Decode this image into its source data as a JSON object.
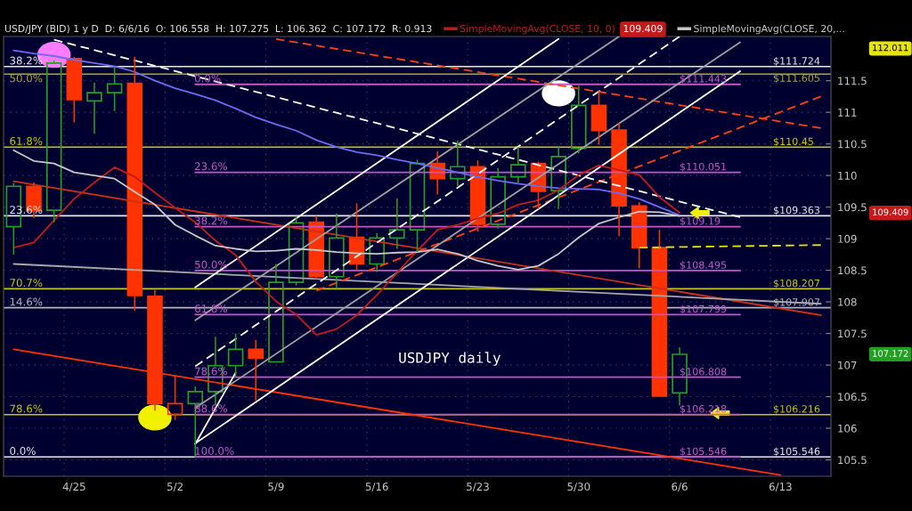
{
  "chart_data": {
    "type": "candlestick",
    "title": "USD/JPY (BID) 1 y D  D: 6/6/16  O: 106.558  H: 107.275  L: 106.362  C: 107.172  R: 0.913",
    "categories": [
      null,
      null,
      null,
      "4/25",
      null,
      null,
      null,
      null,
      "5/2",
      null,
      null,
      null,
      null,
      "5/9",
      null,
      null,
      null,
      null,
      "5/16",
      null,
      null,
      null,
      null,
      "5/23",
      null,
      null,
      null,
      null,
      "5/30",
      null,
      null,
      null,
      null,
      "6/6",
      null,
      null,
      null,
      null,
      "6/13",
      null,
      null
    ],
    "ohlc": [
      [
        109.19,
        109.88,
        108.75,
        109.83
      ],
      [
        109.83,
        109.89,
        109.33,
        109.44
      ],
      [
        109.45,
        111.82,
        109.26,
        111.78
      ],
      [
        111.85,
        111.88,
        110.84,
        111.2
      ],
      [
        111.18,
        111.47,
        110.66,
        111.31
      ],
      [
        111.31,
        111.72,
        111.02,
        111.45
      ],
      [
        111.46,
        111.88,
        107.86,
        108.1
      ],
      [
        108.09,
        108.19,
        106.28,
        106.39
      ],
      [
        106.22,
        106.82,
        106.13,
        106.39
      ],
      [
        106.39,
        106.66,
        105.55,
        106.58
      ],
      [
        106.58,
        107.45,
        106.37,
        106.99
      ],
      [
        106.99,
        107.5,
        106.81,
        107.25
      ],
      [
        107.25,
        107.4,
        106.44,
        107.11
      ],
      [
        107.05,
        108.6,
        107.05,
        108.31
      ],
      [
        108.31,
        109.36,
        108.26,
        109.25
      ],
      [
        109.26,
        109.36,
        108.36,
        108.4
      ],
      [
        108.4,
        109.4,
        108.21,
        109.01
      ],
      [
        109.02,
        109.56,
        108.5,
        108.6
      ],
      [
        108.6,
        109.09,
        108.47,
        109.01
      ],
      [
        109.01,
        109.64,
        108.84,
        109.14
      ],
      [
        109.14,
        110.25,
        108.79,
        110.19
      ],
      [
        110.19,
        110.38,
        109.7,
        109.95
      ],
      [
        109.95,
        110.56,
        109.83,
        110.14
      ],
      [
        110.14,
        110.24,
        109.11,
        109.23
      ],
      [
        109.23,
        110.12,
        109.16,
        109.98
      ],
      [
        109.98,
        110.45,
        109.88,
        110.17
      ],
      [
        110.19,
        110.22,
        109.47,
        109.75
      ],
      [
        109.76,
        110.45,
        109.47,
        110.3
      ],
      [
        110.43,
        111.42,
        110.35,
        111.11
      ],
      [
        111.11,
        111.35,
        110.49,
        110.71
      ],
      [
        110.72,
        110.83,
        109.04,
        109.52
      ],
      [
        109.52,
        109.58,
        108.53,
        108.86
      ],
      [
        108.86,
        109.14,
        106.51,
        106.51
      ],
      [
        106.56,
        107.28,
        106.36,
        107.17
      ],
      null,
      null,
      null,
      null,
      null,
      null,
      null
    ],
    "colors": [
      "#22a022",
      "#ff3300",
      "#22a022",
      "#ff3300",
      "#22a022",
      "#22a022",
      "#ff3300",
      "#ff3300",
      "#ff3300",
      "#22a022",
      "#22a022",
      "#22a022",
      "#ff3300",
      "#22a022",
      "#22a022",
      "#ff3300",
      "#22a022",
      "#ff3300",
      "#22a022",
      "#22a022",
      "#22a022",
      "#ff3300",
      "#22a022",
      "#ff3300",
      "#22a022",
      "#22a022",
      "#ff3300",
      "#22a022",
      "#22a022",
      "#ff3300",
      "#ff3300",
      "#ff3300",
      "#ff3300",
      "#22a022",
      null,
      null,
      null,
      null,
      null,
      null,
      null
    ],
    "ylim": [
      105.24,
      112.2
    ],
    "yticks": [
      105.5,
      106,
      106.5,
      107,
      107.5,
      108,
      108.5,
      109,
      109.5,
      110,
      110.5,
      111,
      111.5
    ],
    "grid": true,
    "legend": "top",
    "ref_lines": [
      {
        "axis": "y",
        "value": 111.724,
        "label": "$111.724",
        "color": "#e8e8e8"
      },
      {
        "axis": "y",
        "value": 111.605,
        "label": "$111.605",
        "color": "#a8a820"
      },
      {
        "axis": "y",
        "value": 110.45,
        "label": "$110.45",
        "color": "#c8c800"
      },
      {
        "axis": "y",
        "value": 109.363,
        "label": "$109.363",
        "color": "#e8e8e8"
      },
      {
        "axis": "y",
        "value": 108.207,
        "label": "$108.207",
        "color": "#c8c800"
      },
      {
        "axis": "y",
        "value": 107.907,
        "label": "$107.907",
        "color": "#b4b4b4"
      },
      {
        "axis": "y",
        "value": 106.216,
        "label": "$106.216",
        "color": "#c8c800"
      },
      {
        "axis": "y",
        "value": 105.546,
        "label": "$105.546",
        "color": "#e8e8e8"
      }
    ],
    "series": [
      {
        "type": "line",
        "name": "0.0%",
        "color": "#c855c8",
        "values": [
          null,
          null,
          null,
          null,
          null,
          null,
          null,
          null,
          null,
          111.443,
          null,
          null,
          null,
          null,
          null,
          null,
          null,
          null,
          null,
          null,
          null,
          null,
          null,
          null,
          null,
          null,
          null,
          null,
          null,
          null,
          null,
          null,
          null,
          null,
          null,
          null,
          111.443,
          null,
          null,
          null,
          null
        ]
      },
      {
        "type": "line",
        "name": "23.6%",
        "color": "#c855c8",
        "values": [
          null,
          null,
          null,
          null,
          null,
          null,
          null,
          null,
          null,
          110.051,
          null,
          null,
          null,
          null,
          null,
          null,
          null,
          null,
          null,
          null,
          null,
          null,
          null,
          null,
          null,
          null,
          null,
          null,
          null,
          null,
          null,
          null,
          null,
          null,
          null,
          null,
          110.051,
          null,
          null,
          null,
          null
        ]
      },
      {
        "type": "line",
        "name": "38.2%",
        "color": "#c855c8",
        "values": [
          null,
          null,
          null,
          null,
          null,
          null,
          null,
          null,
          null,
          109.19,
          null,
          null,
          null,
          null,
          null,
          null,
          null,
          null,
          null,
          null,
          null,
          null,
          null,
          null,
          null,
          null,
          null,
          null,
          null,
          null,
          null,
          null,
          null,
          null,
          null,
          null,
          109.19,
          null,
          null,
          null,
          null
        ]
      },
      {
        "type": "line",
        "name": "50.0%",
        "color": "#c855c8",
        "values": [
          null,
          null,
          null,
          null,
          null,
          null,
          null,
          null,
          null,
          108.495,
          null,
          null,
          null,
          null,
          null,
          null,
          null,
          null,
          null,
          null,
          null,
          null,
          null,
          null,
          null,
          null,
          null,
          null,
          null,
          null,
          null,
          null,
          null,
          null,
          null,
          null,
          108.495,
          null,
          null,
          null,
          null
        ]
      },
      {
        "type": "line",
        "name": "61.8%",
        "color": "#c855c8",
        "values": [
          null,
          null,
          null,
          null,
          null,
          null,
          null,
          null,
          null,
          107.799,
          null,
          null,
          null,
          null,
          null,
          null,
          null,
          null,
          null,
          null,
          null,
          null,
          null,
          null,
          null,
          null,
          null,
          null,
          null,
          null,
          null,
          null,
          null,
          null,
          null,
          null,
          107.799,
          null,
          null,
          null,
          null
        ]
      },
      {
        "type": "line",
        "name": "78.6%",
        "color": "#c855c8",
        "values": [
          null,
          null,
          null,
          null,
          null,
          null,
          null,
          null,
          null,
          106.808,
          null,
          null,
          null,
          null,
          null,
          null,
          null,
          null,
          null,
          null,
          null,
          null,
          null,
          null,
          null,
          null,
          null,
          null,
          null,
          null,
          null,
          null,
          null,
          null,
          null,
          null,
          106.808,
          null,
          null,
          null,
          null
        ]
      },
      {
        "type": "line",
        "name": "88.6%",
        "color": "#c855c8",
        "values": [
          null,
          null,
          null,
          null,
          null,
          null,
          null,
          null,
          null,
          106.218,
          null,
          null,
          null,
          null,
          null,
          null,
          null,
          null,
          null,
          null,
          null,
          null,
          null,
          null,
          null,
          null,
          null,
          null,
          null,
          null,
          null,
          null,
          null,
          null,
          null,
          null,
          106.218,
          null,
          null,
          null,
          null
        ]
      },
      {
        "type": "line",
        "name": "100.0%",
        "color": "#c855c8",
        "values": [
          null,
          null,
          null,
          null,
          null,
          null,
          null,
          null,
          null,
          105.546,
          null,
          null,
          null,
          null,
          null,
          null,
          null,
          null,
          null,
          null,
          null,
          null,
          null,
          null,
          null,
          null,
          null,
          null,
          null,
          null,
          null,
          null,
          null,
          null,
          null,
          null,
          105.546,
          null,
          null,
          null,
          null
        ]
      },
      {
        "type": "line",
        "color": "#c83214",
        "values": [
          109.91,
          null,
          null,
          null,
          null,
          null,
          null,
          null,
          null,
          null,
          null,
          null,
          null,
          null,
          null,
          null,
          null,
          null,
          null,
          null,
          null,
          null,
          null,
          null,
          null,
          null,
          null,
          null,
          null,
          null,
          null,
          null,
          null,
          null,
          null,
          null,
          null,
          null,
          null,
          null,
          107.79
        ]
      },
      {
        "type": "line",
        "color": "#a8a8a8",
        "values": [
          108.6,
          null,
          null,
          null,
          null,
          null,
          null,
          null,
          null,
          null,
          null,
          null,
          null,
          null,
          null,
          null,
          null,
          null,
          null,
          null,
          null,
          null,
          null,
          null,
          null,
          null,
          null,
          null,
          null,
          null,
          null,
          null,
          null,
          null,
          null,
          null,
          null,
          null,
          null,
          null,
          107.97
        ]
      },
      {
        "type": "line",
        "color": "#ff3300",
        "values": [
          107.25,
          null,
          null,
          null,
          null,
          null,
          null,
          null,
          null,
          null,
          null,
          null,
          null,
          null,
          null,
          null,
          null,
          null,
          null,
          null,
          null,
          null,
          null,
          null,
          null,
          null,
          null,
          null,
          null,
          null,
          null,
          null,
          null,
          null,
          null,
          null,
          null,
          null,
          105.26,
          null,
          null
        ]
      },
      {
        "type": "line",
        "color": "#ff4010",
        "line_style": "dashed",
        "values": [
          null,
          null,
          null,
          null,
          null,
          null,
          null,
          null,
          null,
          null,
          null,
          null,
          null,
          112.16,
          null,
          null,
          null,
          null,
          null,
          null,
          null,
          null,
          null,
          null,
          null,
          null,
          null,
          null,
          null,
          null,
          null,
          null,
          null,
          null,
          null,
          null,
          null,
          null,
          null,
          null,
          110.75
        ]
      },
      {
        "type": "line",
        "color": "#ff4010",
        "line_style": "dashed",
        "values": [
          null,
          null,
          null,
          null,
          null,
          null,
          null,
          null,
          null,
          null,
          null,
          null,
          null,
          null,
          null,
          108.18,
          null,
          null,
          null,
          null,
          null,
          null,
          null,
          null,
          null,
          null,
          null,
          null,
          null,
          null,
          null,
          null,
          null,
          null,
          null,
          null,
          null,
          null,
          null,
          null,
          111.25
        ]
      },
      {
        "type": "line",
        "color": "#ffffff",
        "line_style": "dashed",
        "values": [
          null,
          null,
          112.15,
          null,
          null,
          null,
          null,
          null,
          null,
          null,
          null,
          null,
          null,
          null,
          null,
          null,
          null,
          null,
          null,
          null,
          null,
          null,
          null,
          null,
          null,
          null,
          null,
          null,
          null,
          null,
          null,
          null,
          null,
          null,
          null,
          null,
          109.34,
          null,
          null,
          null,
          null
        ]
      },
      {
        "type": "line",
        "color": "#ffffff",
        "values": [
          null,
          null,
          null,
          null,
          null,
          null,
          null,
          null,
          null,
          108.23,
          null,
          null,
          null,
          null,
          null,
          null,
          null,
          null,
          null,
          null,
          null,
          null,
          null,
          null,
          null,
          null,
          null,
          112.16,
          null,
          null,
          null,
          null,
          null,
          null,
          null,
          null,
          null,
          null,
          null,
          null,
          null
        ]
      },
      {
        "type": "line",
        "color": "#ffffff",
        "values": [
          null,
          null,
          null,
          null,
          null,
          null,
          null,
          null,
          null,
          105.76,
          null,
          null,
          null,
          null,
          null,
          null,
          null,
          null,
          null,
          null,
          null,
          null,
          null,
          null,
          null,
          null,
          null,
          null,
          null,
          null,
          null,
          null,
          null,
          null,
          null,
          null,
          111.65,
          null,
          null,
          null,
          null
        ]
      },
      {
        "type": "line",
        "color": "#ffffff",
        "values": [
          null,
          null,
          null,
          null,
          null,
          null,
          null,
          null,
          null,
          105.75,
          null,
          106.88,
          null,
          null,
          null,
          null,
          null,
          null,
          null,
          null,
          null,
          null,
          null,
          null,
          null,
          null,
          null,
          null,
          null,
          null,
          null,
          null,
          null,
          null,
          null,
          null,
          null,
          null,
          null,
          null,
          null
        ]
      },
      {
        "type": "line",
        "color": "#ffffff",
        "line_style": "dashed",
        "values": [
          null,
          null,
          null,
          null,
          null,
          null,
          null,
          null,
          null,
          106.98,
          null,
          null,
          null,
          null,
          null,
          null,
          null,
          null,
          null,
          null,
          null,
          null,
          null,
          null,
          null,
          null,
          null,
          null,
          null,
          null,
          null,
          null,
          null,
          112.2,
          null,
          null,
          null,
          null,
          null,
          null,
          null
        ]
      },
      {
        "type": "line",
        "color": "#a0a0a0",
        "values": [
          null,
          null,
          null,
          null,
          null,
          null,
          null,
          null,
          null,
          107.71,
          null,
          null,
          null,
          null,
          null,
          null,
          null,
          null,
          null,
          null,
          null,
          null,
          null,
          null,
          null,
          null,
          null,
          null,
          null,
          null,
          112.2,
          null,
          null,
          null,
          null,
          null,
          null,
          null,
          null,
          null,
          null
        ]
      },
      {
        "type": "line",
        "color": "#a0a0a0",
        "values": [
          null,
          null,
          null,
          null,
          null,
          null,
          null,
          null,
          null,
          106.32,
          null,
          null,
          null,
          null,
          null,
          null,
          null,
          null,
          null,
          null,
          null,
          null,
          null,
          null,
          null,
          null,
          null,
          null,
          null,
          null,
          null,
          null,
          null,
          null,
          null,
          null,
          112.11,
          null,
          null,
          null,
          null
        ]
      },
      {
        "type": "line",
        "color": "#e6e600",
        "line_style": "dashed",
        "values": [
          null,
          null,
          null,
          null,
          null,
          null,
          null,
          null,
          null,
          null,
          null,
          null,
          null,
          null,
          null,
          null,
          null,
          null,
          null,
          null,
          null,
          null,
          null,
          null,
          null,
          null,
          null,
          null,
          null,
          null,
          null,
          108.86,
          null,
          null,
          null,
          null,
          null,
          null,
          null,
          null,
          108.9
        ]
      },
      {
        "type": "line",
        "color": "#6b6bf2",
        "values": [
          111.98,
          111.93,
          111.89,
          111.83,
          111.78,
          111.73,
          111.64,
          111.5,
          111.38,
          111.29,
          111.19,
          111.06,
          110.92,
          110.81,
          110.71,
          110.56,
          110.45,
          110.37,
          110.32,
          110.25,
          110.19,
          110.12,
          110.05,
          109.98,
          109.92,
          109.87,
          109.83,
          109.8,
          109.79,
          109.78,
          109.72,
          109.63,
          109.5,
          109.37,
          null,
          null,
          null,
          null,
          null,
          null,
          null
        ]
      },
      {
        "type": "line",
        "name": "SimpleMovingAvg(CLOSE, 10, 0)",
        "color": "#c41a1a",
        "values": [
          108.86,
          108.94,
          109.29,
          109.63,
          109.89,
          110.13,
          109.98,
          109.73,
          109.49,
          109.26,
          108.97,
          108.74,
          108.32,
          108.01,
          107.8,
          107.48,
          107.57,
          107.79,
          108.11,
          108.46,
          108.81,
          109.14,
          109.22,
          109.32,
          109.4,
          109.54,
          109.61,
          109.77,
          110.01,
          110.16,
          110.09,
          110.01,
          109.66,
          109.41,
          null,
          null,
          null,
          null,
          null,
          null,
          null
        ]
      },
      {
        "type": "line",
        "name": "SimpleMovingAvg(CLOSE, 20,...",
        "color": "#c8c8c8",
        "values": [
          110.4,
          110.23,
          110.19,
          110.05,
          110.0,
          109.95,
          109.74,
          109.54,
          109.22,
          109.05,
          108.89,
          108.84,
          108.8,
          108.81,
          108.84,
          108.82,
          108.79,
          108.77,
          108.76,
          108.78,
          108.79,
          108.83,
          108.76,
          108.65,
          108.57,
          108.51,
          108.57,
          108.76,
          109.02,
          109.24,
          109.34,
          109.43,
          109.42,
          109.36,
          null,
          null,
          null,
          null,
          null,
          null,
          null
        ]
      },
      {
        "type": "scatter",
        "marker": "circle",
        "color": "#f0f000",
        "values": [
          null,
          null,
          null,
          null,
          null,
          null,
          null,
          106.17,
          null,
          null,
          null,
          null,
          null,
          null,
          null,
          null,
          null,
          null,
          null,
          null,
          null,
          null,
          null,
          null,
          null,
          null,
          null,
          null,
          null,
          null,
          null,
          null,
          null,
          null,
          null,
          null,
          null,
          null,
          null,
          null,
          null
        ]
      },
      {
        "type": "scatter",
        "marker": "circle",
        "color": "#ffffff",
        "values": [
          null,
          null,
          null,
          null,
          null,
          null,
          null,
          null,
          null,
          null,
          null,
          null,
          null,
          null,
          null,
          null,
          null,
          null,
          null,
          null,
          null,
          null,
          null,
          null,
          null,
          null,
          null,
          111.3,
          null,
          null,
          null,
          null,
          null,
          null,
          null,
          null,
          null,
          null,
          null,
          null,
          null
        ]
      },
      {
        "type": "scatter",
        "marker": "circle",
        "color": "#ff7cff",
        "values": [
          null,
          null,
          111.91,
          null,
          null,
          null,
          null,
          null,
          null,
          null,
          null,
          null,
          null,
          null,
          null,
          null,
          null,
          null,
          null,
          null,
          null,
          null,
          null,
          null,
          null,
          null,
          null,
          null,
          null,
          null,
          null,
          null,
          null,
          null,
          null,
          null,
          null,
          null,
          null,
          null,
          null
        ]
      },
      {
        "type": "scatter",
        "marker": "triangle",
        "color": "#f0f000",
        "values": [
          null,
          null,
          null,
          null,
          null,
          null,
          null,
          null,
          null,
          null,
          null,
          null,
          null,
          null,
          null,
          null,
          null,
          null,
          null,
          null,
          null,
          null,
          null,
          null,
          null,
          null,
          null,
          null,
          null,
          null,
          null,
          null,
          null,
          null,
          109.41,
          106.24,
          null,
          null,
          null,
          null,
          null
        ]
      }
    ],
    "annotations": [
      "USDJPY daily",
      "109.409",
      "112.011",
      "109.409",
      "107.172",
      {
        "text": "38.2%",
        "y": 111.724
      },
      {
        "text": "50.0%",
        "y": 111.605
      },
      {
        "text": "61.8%",
        "y": 110.45
      },
      {
        "text": "23.6%",
        "y": 109.363
      },
      {
        "text": "70.7%",
        "y": 108.207
      },
      {
        "text": "14.6%",
        "y": 107.907
      },
      {
        "text": "78.6%",
        "y": 106.216
      },
      {
        "text": "0.0%",
        "y": 105.546
      },
      {
        "text": "$111.443",
        "x": "6/6",
        "y": 111.443
      },
      {
        "text": "$110.051",
        "x": "6/6",
        "y": 110.051
      },
      {
        "text": "$109.19",
        "x": "6/6",
        "y": 109.19
      },
      {
        "text": "$108.495",
        "x": "6/6",
        "y": 108.495
      },
      {
        "text": "$107.799",
        "x": "6/6",
        "y": 107.799
      },
      {
        "text": "$106.808",
        "x": "6/6",
        "y": 106.808
      },
      {
        "text": "$106.218",
        "x": "6/6",
        "y": 106.218
      },
      {
        "text": "$105.546",
        "x": "6/6",
        "y": 105.546
      }
    ]
  }
}
